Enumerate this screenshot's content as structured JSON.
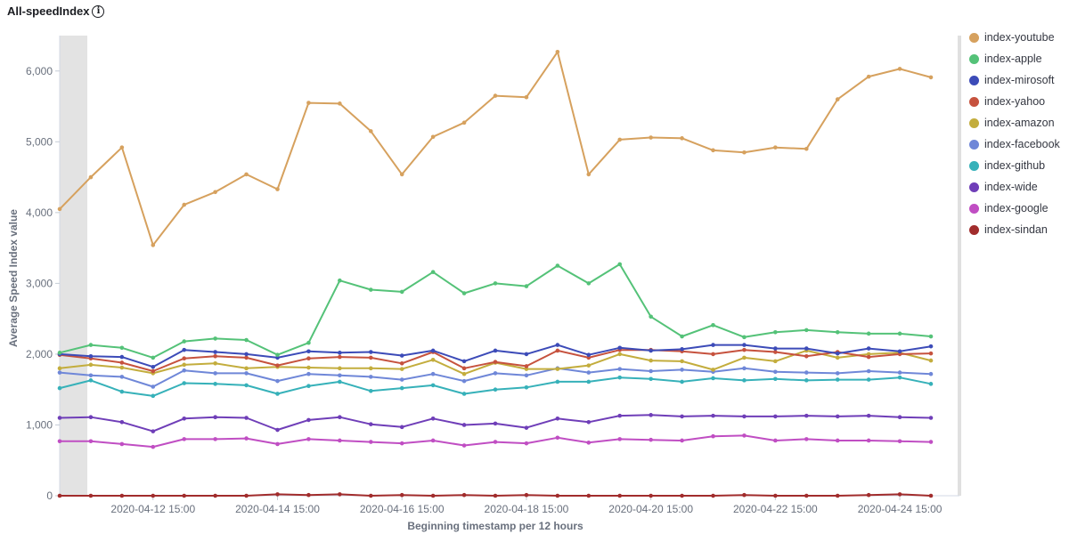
{
  "panel": {
    "title": "All-speedIndex",
    "info_icon": "info-icon"
  },
  "chart_data": {
    "type": "line",
    "title": "All-speedIndex",
    "xlabel": "Beginning timestamp per 12 hours",
    "ylabel": "Average Speed Index value",
    "ylim": [
      0,
      6500
    ],
    "yticks": [
      "0",
      "1,000",
      "2,000",
      "3,000",
      "4,000",
      "5,000",
      "6,000"
    ],
    "x_ticks": [
      "2020-04-12 15:00",
      "2020-04-14 15:00",
      "2020-04-16 15:00",
      "2020-04-18 15:00",
      "2020-04-20 15:00",
      "2020-04-22 15:00",
      "2020-04-24 15:00"
    ],
    "x_tick_index": [
      3,
      7,
      11,
      15,
      19,
      23,
      27
    ],
    "grid": false,
    "legend_position": "right",
    "partial_bucket": true,
    "series": [
      {
        "name": "index-youtube",
        "color": "#D6A15E",
        "values": [
          4050,
          4500,
          4920,
          3540,
          4110,
          4290,
          4540,
          4330,
          5550,
          5540,
          5150,
          4540,
          5070,
          5270,
          5650,
          5630,
          6270,
          4540,
          5030,
          5060,
          5050,
          4880,
          4850,
          4920,
          4900,
          5600,
          5920,
          6030,
          5910
        ]
      },
      {
        "name": "index-apple",
        "color": "#54C278",
        "values": [
          2020,
          2130,
          2090,
          1950,
          2180,
          2220,
          2200,
          1990,
          2160,
          3040,
          2910,
          2880,
          3160,
          2860,
          3000,
          2960,
          3250,
          3000,
          3270,
          2530,
          2250,
          2410,
          2240,
          2310,
          2340,
          2310,
          2290,
          2290,
          2250
        ]
      },
      {
        "name": "index-mirosoft",
        "color": "#3C4BB8",
        "values": [
          2000,
          1970,
          1960,
          1820,
          2060,
          2030,
          2000,
          1950,
          2040,
          2020,
          2030,
          1980,
          2050,
          1900,
          2050,
          2000,
          2130,
          1990,
          2090,
          2050,
          2070,
          2130,
          2130,
          2080,
          2080,
          2010,
          2080,
          2040,
          2110
        ]
      },
      {
        "name": "index-yahoo",
        "color": "#C6523E",
        "values": [
          1990,
          1940,
          1880,
          1760,
          1940,
          1970,
          1950,
          1840,
          1940,
          1960,
          1950,
          1870,
          2030,
          1800,
          1890,
          1830,
          2050,
          1950,
          2060,
          2060,
          2040,
          2000,
          2060,
          2030,
          1970,
          2030,
          1960,
          2000,
          2010
        ]
      },
      {
        "name": "index-amazon",
        "color": "#C3AD3D",
        "values": [
          1800,
          1850,
          1810,
          1730,
          1850,
          1870,
          1800,
          1820,
          1810,
          1800,
          1800,
          1790,
          1920,
          1720,
          1880,
          1790,
          1790,
          1840,
          2000,
          1910,
          1900,
          1780,
          1950,
          1900,
          2050,
          1950,
          2000,
          2020,
          1910
        ]
      },
      {
        "name": "index-facebook",
        "color": "#6F87D8",
        "values": [
          1740,
          1700,
          1680,
          1540,
          1770,
          1730,
          1730,
          1620,
          1720,
          1700,
          1680,
          1640,
          1720,
          1620,
          1730,
          1700,
          1800,
          1740,
          1790,
          1760,
          1780,
          1750,
          1800,
          1750,
          1740,
          1730,
          1760,
          1740,
          1720
        ]
      },
      {
        "name": "index-github",
        "color": "#36B1B9",
        "values": [
          1520,
          1630,
          1470,
          1410,
          1590,
          1580,
          1560,
          1440,
          1550,
          1610,
          1480,
          1520,
          1560,
          1440,
          1500,
          1530,
          1610,
          1610,
          1670,
          1650,
          1610,
          1660,
          1630,
          1650,
          1630,
          1640,
          1640,
          1670,
          1580
        ]
      },
      {
        "name": "index-wide",
        "color": "#6F3EB8",
        "values": [
          1100,
          1110,
          1040,
          910,
          1090,
          1110,
          1100,
          930,
          1070,
          1110,
          1010,
          970,
          1090,
          1000,
          1020,
          960,
          1090,
          1040,
          1130,
          1140,
          1120,
          1130,
          1120,
          1120,
          1130,
          1120,
          1130,
          1110,
          1100
        ]
      },
      {
        "name": "index-google",
        "color": "#C04EC3",
        "values": [
          770,
          770,
          730,
          690,
          800,
          800,
          810,
          730,
          800,
          780,
          760,
          740,
          780,
          710,
          760,
          740,
          820,
          750,
          800,
          790,
          780,
          840,
          850,
          780,
          800,
          780,
          780,
          770,
          760
        ]
      },
      {
        "name": "index-sindan",
        "color": "#A12C2C",
        "values": [
          0,
          0,
          0,
          0,
          0,
          0,
          0,
          20,
          10,
          20,
          0,
          10,
          0,
          10,
          0,
          10,
          0,
          0,
          0,
          0,
          0,
          0,
          10,
          0,
          0,
          0,
          10,
          20,
          0
        ]
      }
    ]
  }
}
